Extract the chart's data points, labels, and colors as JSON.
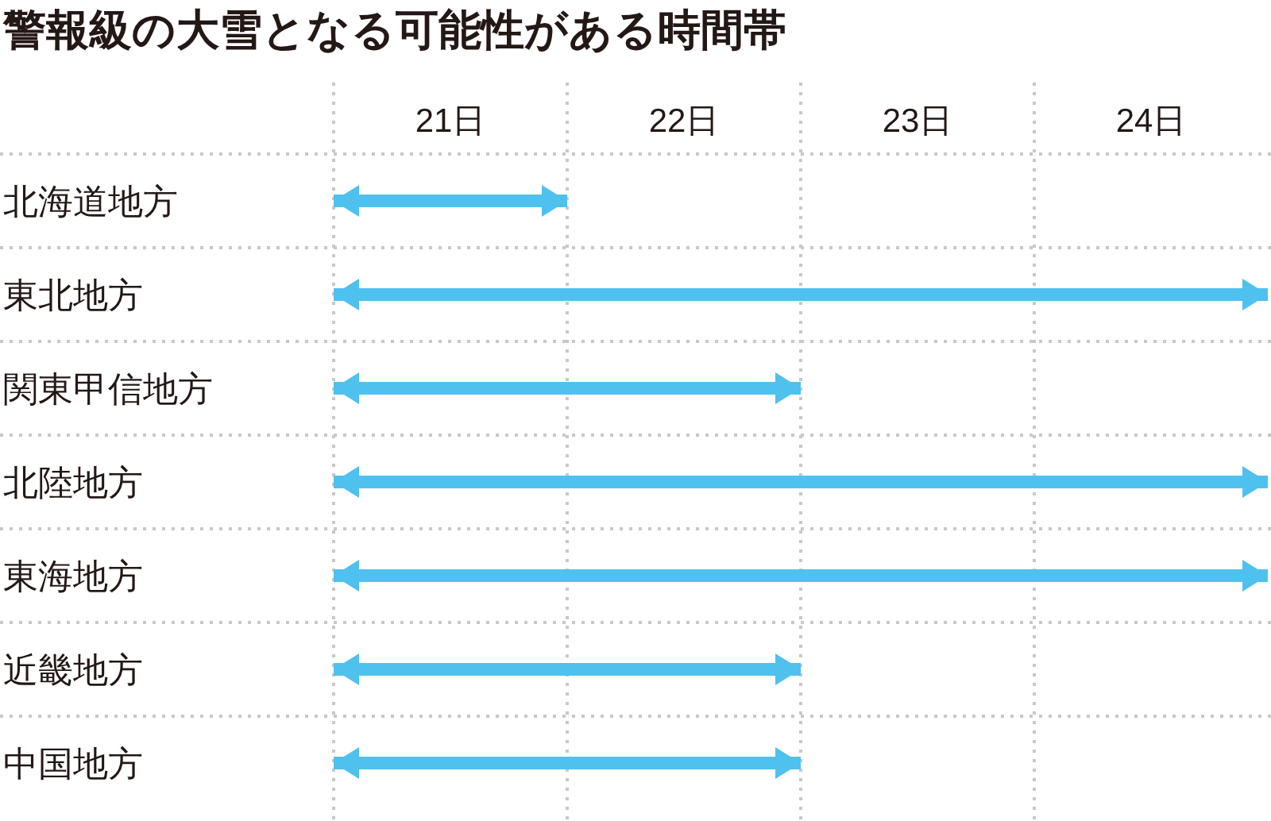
{
  "chart_data": {
    "type": "bar",
    "orientation": "horizontal",
    "title": "警報級の大雪となる可能性がある時間帯",
    "categories": [
      "北海道地方",
      "東北地方",
      "関東甲信地方",
      "北陸地方",
      "東海地方",
      "近畿地方",
      "中国地方"
    ],
    "base": [
      20.5,
      20.5,
      20.5,
      20.5,
      20.5,
      20.5,
      20.5
    ],
    "values": [
      1,
      4,
      2,
      4,
      4,
      2,
      2
    ],
    "color": "#4fc1ef",
    "xlim": [
      20.5,
      24.5
    ],
    "xticks": [
      {
        "value": 21,
        "label": "21日"
      },
      {
        "value": 22,
        "label": "22日"
      },
      {
        "value": 23,
        "label": "23日"
      },
      {
        "value": 24,
        "label": "24日"
      }
    ],
    "ref_lines": [
      {
        "axis": "x",
        "value": 21.5,
        "color": "#c8c8c8",
        "line_style": "dotted"
      },
      {
        "axis": "x",
        "value": 22.5,
        "color": "#c8c8c8",
        "line_style": "dotted"
      },
      {
        "axis": "x",
        "value": 23.5,
        "color": "#c8c8c8",
        "line_style": "dotted"
      }
    ],
    "grid": "y"
  }
}
